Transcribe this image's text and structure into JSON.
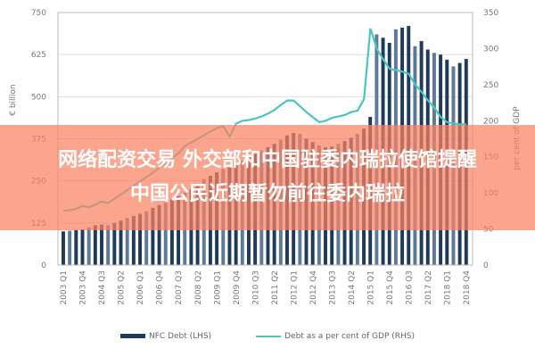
{
  "chart_data": {
    "type": "bar+line",
    "ylabel_left": "€ billion",
    "ylabel_right": "per cent of GDP",
    "ylim_left": [
      0,
      750
    ],
    "ylim_right": [
      0,
      350
    ],
    "yticks_left": [
      0,
      125,
      250,
      375,
      500,
      625,
      750
    ],
    "yticks_right": [
      0,
      50,
      100,
      150,
      200,
      250,
      300,
      350
    ],
    "grid": true,
    "legend_position": "bottom",
    "xtick_labels": [
      "2003 Q1",
      "2003 Q4",
      "2004 Q3",
      "2005 Q2",
      "2006 Q1",
      "2006 Q4",
      "2007 Q3",
      "2008 Q2",
      "2009 Q1",
      "2009 Q4",
      "2010 Q3",
      "2011 Q2",
      "2012 Q1",
      "2012 Q4",
      "2013 Q3",
      "2014 Q2",
      "2015 Q1",
      "2015 Q4",
      "2016 Q3",
      "2017 Q2",
      "2018 Q1",
      "2018 Q4"
    ],
    "start": "2003 Q1",
    "series": [
      {
        "name": "NFC Debt (LHS)",
        "type": "bar",
        "axis": "left",
        "color": "#1f3b5a",
        "values": [
          100,
          102,
          104,
          106,
          112,
          118,
          120,
          118,
          125,
          132,
          140,
          146,
          152,
          160,
          170,
          178,
          185,
          195,
          205,
          215,
          225,
          240,
          255,
          265,
          275,
          285,
          290,
          300,
          310,
          320,
          330,
          340,
          350,
          360,
          372,
          385,
          392,
          390,
          375,
          365,
          355,
          350,
          352,
          360,
          368,
          378,
          390,
          405,
          440,
          685,
          675,
          660,
          700,
          705,
          710,
          650,
          665,
          640,
          630,
          625,
          610,
          590,
          600,
          612
        ]
      },
      {
        "name": "Debt as a per cent of GDP (RHS)",
        "type": "line",
        "axis": "right",
        "color": "#4cc4bf",
        "values": [
          75,
          76,
          78,
          82,
          80,
          84,
          88,
          86,
          92,
          98,
          104,
          110,
          116,
          122,
          128,
          135,
          140,
          148,
          155,
          165,
          170,
          175,
          180,
          185,
          190,
          192,
          178,
          196,
          200,
          201,
          203,
          206,
          210,
          215,
          222,
          228,
          228,
          220,
          212,
          205,
          198,
          200,
          204,
          206,
          208,
          212,
          214,
          230,
          328,
          300,
          285,
          272,
          270,
          268,
          265,
          250,
          240,
          228,
          218,
          205,
          198,
          196,
          195,
          195
        ]
      }
    ]
  },
  "banner": {
    "line1": "网络配资交易 外交部和中国驻委内瑞拉使馆提醒",
    "line2": "中国公民近期暂勿前往委内瑞拉"
  }
}
